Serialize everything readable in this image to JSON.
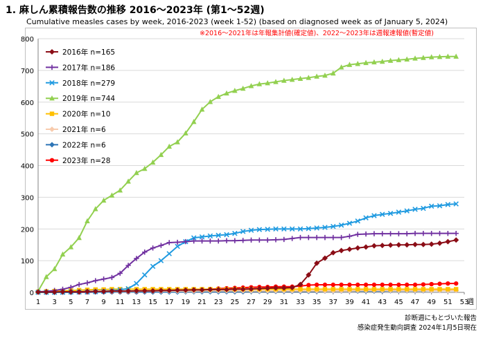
{
  "header": {
    "title": "1. 麻しん累積報告数の推移  2016～2023年 (第1～52週)",
    "subtitle": "Cumulative measles cases by week, 2016-2023 (week 1-52)  (based on diagnosed week as of January 5, 2024)",
    "note": "※2016～2021年は年報集計値(確定値)、2022～2023年は週報速報値(暫定値)"
  },
  "footer": {
    "line1": "診断週にもとづいた報告",
    "line2": "感染症発生動向調査 2024年1月5日現在"
  },
  "chart_data": {
    "type": "line",
    "title": "1. 麻しん累積報告数の推移  2016～2023年 (第1～52週)",
    "xlabel": "週",
    "ylabel": "",
    "xlim": [
      1,
      53
    ],
    "ylim": [
      0,
      800
    ],
    "xticks": [
      1,
      3,
      5,
      7,
      9,
      11,
      13,
      15,
      17,
      19,
      21,
      23,
      25,
      27,
      29,
      31,
      33,
      35,
      37,
      39,
      41,
      43,
      45,
      47,
      49,
      51,
      53
    ],
    "yticks": [
      0,
      100,
      200,
      300,
      400,
      500,
      600,
      700,
      800
    ],
    "grid": true,
    "legend_position": "top-left",
    "series": [
      {
        "name": "2016年 n=165",
        "color": "#8b0d16",
        "marker": "diamond",
        "values": [
          1,
          1,
          1,
          2,
          2,
          2,
          3,
          3,
          3,
          4,
          4,
          4,
          5,
          5,
          5,
          6,
          6,
          7,
          7,
          8,
          8,
          9,
          9,
          9,
          10,
          10,
          11,
          12,
          13,
          14,
          14,
          15,
          25,
          55,
          92,
          108,
          125,
          132,
          136,
          140,
          143,
          147,
          148,
          149,
          150,
          150,
          151,
          151,
          152,
          155,
          160,
          165
        ]
      },
      {
        "name": "2017年 n=186",
        "color": "#7030a0",
        "marker": "plus",
        "values": [
          2,
          3,
          6,
          10,
          16,
          25,
          30,
          37,
          42,
          47,
          60,
          85,
          107,
          127,
          140,
          148,
          157,
          158,
          160,
          162,
          162,
          162,
          162,
          163,
          163,
          164,
          165,
          165,
          165,
          166,
          167,
          170,
          173,
          173,
          173,
          173,
          173,
          173,
          177,
          183,
          184,
          185,
          185,
          185,
          185,
          185,
          186,
          186,
          186,
          186,
          186,
          186
        ]
      },
      {
        "name": "2018年 n=279",
        "color": "#1f9ae0",
        "marker": "x",
        "values": [
          0,
          0,
          0,
          0,
          1,
          1,
          1,
          2,
          3,
          5,
          8,
          12,
          28,
          55,
          82,
          100,
          122,
          145,
          160,
          172,
          175,
          178,
          180,
          182,
          186,
          192,
          196,
          198,
          199,
          200,
          200,
          200,
          200,
          201,
          203,
          205,
          208,
          212,
          218,
          225,
          235,
          242,
          246,
          249,
          253,
          257,
          262,
          265,
          272,
          273,
          277,
          279
        ]
      },
      {
        "name": "2019年 n=744",
        "color": "#92d050",
        "marker": "triangle",
        "values": [
          4,
          49,
          74,
          120,
          143,
          172,
          225,
          263,
          290,
          306,
          322,
          350,
          377,
          390,
          410,
          434,
          460,
          474,
          502,
          538,
          577,
          601,
          617,
          628,
          636,
          643,
          651,
          657,
          660,
          664,
          668,
          671,
          674,
          677,
          681,
          684,
          691,
          710,
          718,
          721,
          724,
          726,
          728,
          731,
          733,
          735,
          738,
          740,
          742,
          743,
          744,
          744
        ]
      },
      {
        "name": "2020年 n=10",
        "color": "#ffc000",
        "marker": "square",
        "values": [
          2,
          3,
          4,
          5,
          6,
          7,
          8,
          9,
          9,
          10,
          10,
          10,
          10,
          10,
          10,
          10,
          10,
          10,
          10,
          10,
          10,
          10,
          10,
          10,
          10,
          10,
          10,
          10,
          10,
          10,
          10,
          10,
          10,
          10,
          10,
          10,
          10,
          10,
          10,
          10,
          10,
          10,
          10,
          10,
          10,
          10,
          10,
          10,
          10,
          10,
          10,
          10
        ]
      },
      {
        "name": "2021年 n=6",
        "color": "#f8cbad",
        "marker": "diamond",
        "values": [
          0,
          1,
          1,
          1,
          2,
          2,
          2,
          3,
          3,
          3,
          3,
          3,
          4,
          4,
          4,
          4,
          4,
          4,
          4,
          4,
          5,
          5,
          5,
          5,
          5,
          5,
          5,
          5,
          5,
          5,
          5,
          5,
          5,
          5,
          5,
          5,
          5,
          5,
          5,
          6,
          6,
          6,
          6,
          6,
          6,
          6,
          6,
          6,
          6,
          6,
          6,
          6
        ]
      },
      {
        "name": "2022年 n=6",
        "color": "#2e75b6",
        "marker": "diamond",
        "values": [
          0,
          0,
          0,
          0,
          0,
          1,
          1,
          1,
          1,
          1,
          1,
          1,
          1,
          1,
          1,
          1,
          1,
          1,
          2,
          2,
          2,
          2,
          2,
          2,
          2,
          2,
          3,
          3,
          3,
          3,
          3,
          3,
          3,
          3,
          3,
          4,
          4,
          4,
          4,
          4,
          4,
          4,
          4,
          5,
          5,
          5,
          5,
          5,
          6,
          6,
          6,
          6
        ]
      },
      {
        "name": "2023年 n=28",
        "color": "#ff0000",
        "marker": "circle",
        "values": [
          0,
          0,
          0,
          0,
          0,
          0,
          0,
          1,
          1,
          1,
          1,
          1,
          1,
          2,
          2,
          2,
          3,
          4,
          5,
          6,
          8,
          10,
          12,
          13,
          14,
          15,
          16,
          17,
          17,
          18,
          18,
          18,
          20,
          23,
          24,
          24,
          24,
          24,
          24,
          24,
          24,
          24,
          24,
          24,
          24,
          24,
          24,
          25,
          26,
          27,
          28,
          28
        ]
      }
    ]
  }
}
